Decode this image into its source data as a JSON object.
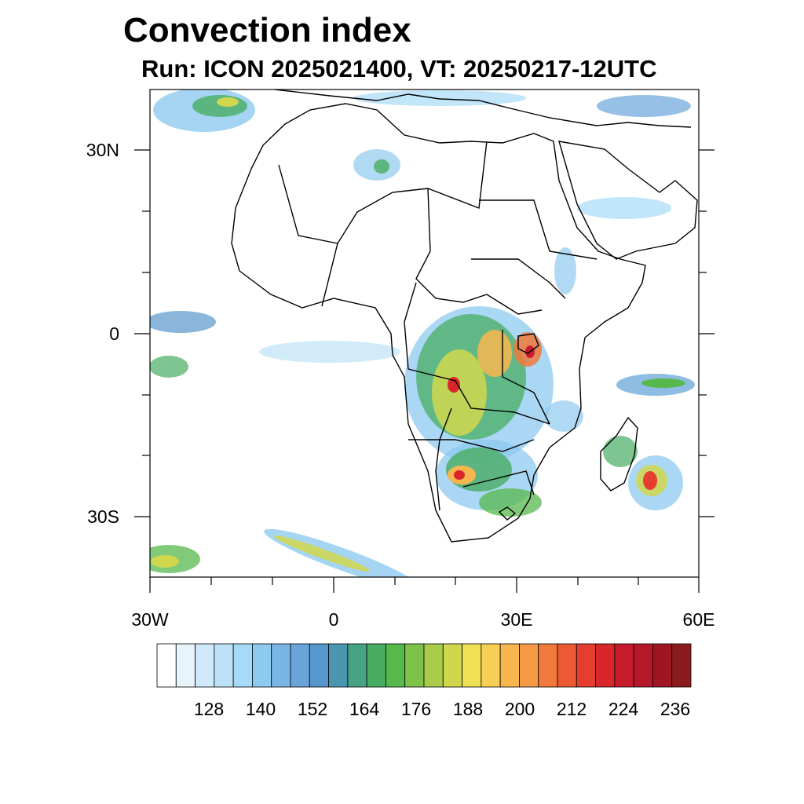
{
  "title": "Convection index",
  "subtitle": "Run: ICON 2025021400,  VT: 20250217-12UTC",
  "map": {
    "extent": {
      "lon": [
        -30,
        60
      ],
      "lat": [
        -40,
        40
      ]
    },
    "lat_ticks": [
      "30N",
      "0",
      "30S"
    ],
    "lon_ticks": [
      "30W",
      "0",
      "30E",
      "60E"
    ],
    "field": "Convection index"
  },
  "colorbar": {
    "colors": [
      "#ffffff",
      "#e8f4fb",
      "#d0e9f8",
      "#bde2f7",
      "#a6daf6",
      "#8ecaef",
      "#7ab6e5",
      "#6aa5da",
      "#5897cd",
      "#4a96b0",
      "#46a384",
      "#48ad63",
      "#57b84c",
      "#7fc24a",
      "#a9cd4b",
      "#d0d74d",
      "#f0e154",
      "#f8cf55",
      "#f8b64f",
      "#f69945",
      "#f1793c",
      "#eb5a33",
      "#e43e2f",
      "#d9262b",
      "#c71c2b",
      "#b5182a",
      "#9f1524",
      "#8b1a1c"
    ],
    "labels": [
      "128",
      "140",
      "152",
      "164",
      "176",
      "188",
      "200",
      "212",
      "224",
      "236"
    ]
  }
}
